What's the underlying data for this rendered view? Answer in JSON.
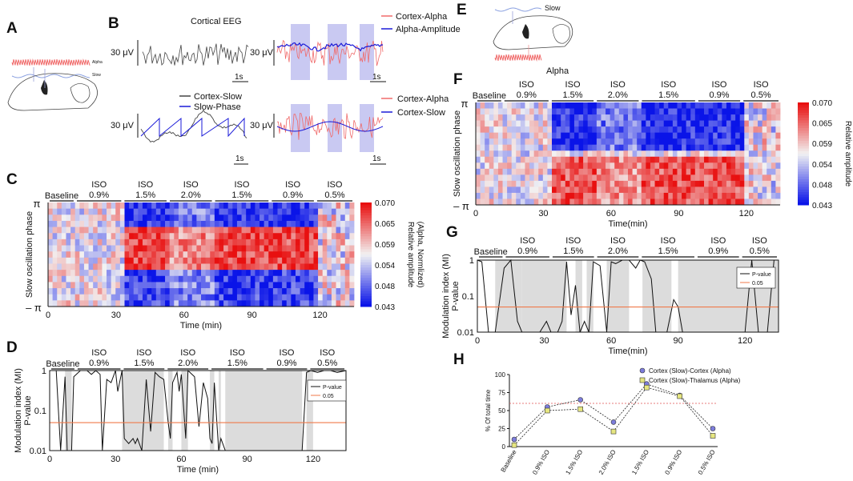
{
  "panels": {
    "A": "A",
    "B": "B",
    "C": "C",
    "D": "D",
    "E": "E",
    "F": "F",
    "G": "G",
    "H": "H"
  },
  "colors": {
    "alpha": "#f06a6a",
    "blue": "#1a1ad8",
    "orange": "#f07a4a",
    "gray_shade": "#dcdcdc",
    "heat_low": "#0a14e8",
    "heat_mid": "#f2f2f2",
    "heat_high": "#e81010",
    "series1": "#7d7ddc",
    "series2": "#e6e680"
  },
  "panel_a": {
    "alpha_label": "Alpha",
    "slow_label": "Slow"
  },
  "panel_e": {
    "slow_label": "Slow",
    "alpha_label": "Alpha"
  },
  "panel_b": {
    "title_eeg": "Cortical EEG",
    "scale": "30 μV",
    "time": "1s",
    "legend1": [
      "Cortex-Alpha",
      "Alpha-Amplitude"
    ],
    "legend2": [
      "Cortex-Slow",
      "Slow-Phase"
    ],
    "legend3": [
      "Cortex-Alpha",
      "Cortex-Slow"
    ]
  },
  "conditions": [
    "Baseline",
    "ISO\n0.9%",
    "ISO\n1.5%",
    "ISO\n2.0%",
    "ISO\n1.5%",
    "ISO\n0.9%",
    "ISO\n0.5%"
  ],
  "cond_iso": "ISO",
  "cond_pct": [
    "0.9%",
    "1.5%",
    "2.0%",
    "1.5%",
    "0.9%",
    "0.5%"
  ],
  "heatmap": {
    "ylabel": "Slow oscillation phase",
    "ytop": "π",
    "ybot": "– π",
    "xlabel_C": "Time (min)",
    "xlabel_F": "Time(min)",
    "xticks": [
      "0",
      "30",
      "60",
      "90",
      "120"
    ],
    "colorbar_ticks": [
      "0.070",
      "0.065",
      "0.059",
      "0.054",
      "0.048",
      "0.043"
    ],
    "colorbar_label1": "Relative amplitude",
    "colorbar_label2": "(Alpha, Normlized)"
  },
  "mi": {
    "ylabel1": "Modulation index (MI)",
    "ylabel2": "P-value",
    "yticks": [
      "1",
      "0.1",
      "0.01"
    ],
    "xlabel_D": "Time (min)",
    "xlabel_G": "Time(min)",
    "xticks": [
      "0",
      "30",
      "60",
      "90",
      "120"
    ],
    "legend": [
      "P-value",
      "0.05"
    ]
  },
  "chart_data": [
    {
      "type": "line",
      "title": "",
      "xlabel": "",
      "ylabel": "% Of total time",
      "categories": [
        "Baseline",
        "0.9% ISO",
        "1.5% ISO",
        "2.0% ISO",
        "1.5% ISO",
        "0.9% ISO",
        "0.5% ISO"
      ],
      "ylim": [
        0,
        100
      ],
      "yticks": [
        "0",
        "25",
        "50",
        "75",
        "100"
      ],
      "reference_line": 60,
      "series": [
        {
          "name": "Cortex (Slow)-Cortex (Alpha)",
          "values": [
            10,
            55,
            65,
            34,
            87,
            71,
            25
          ]
        },
        {
          "name": "Cortex (Slow)-Thalamus (Alpha)",
          "values": [
            2,
            50,
            52,
            21,
            82,
            70,
            15
          ]
        }
      ]
    }
  ]
}
